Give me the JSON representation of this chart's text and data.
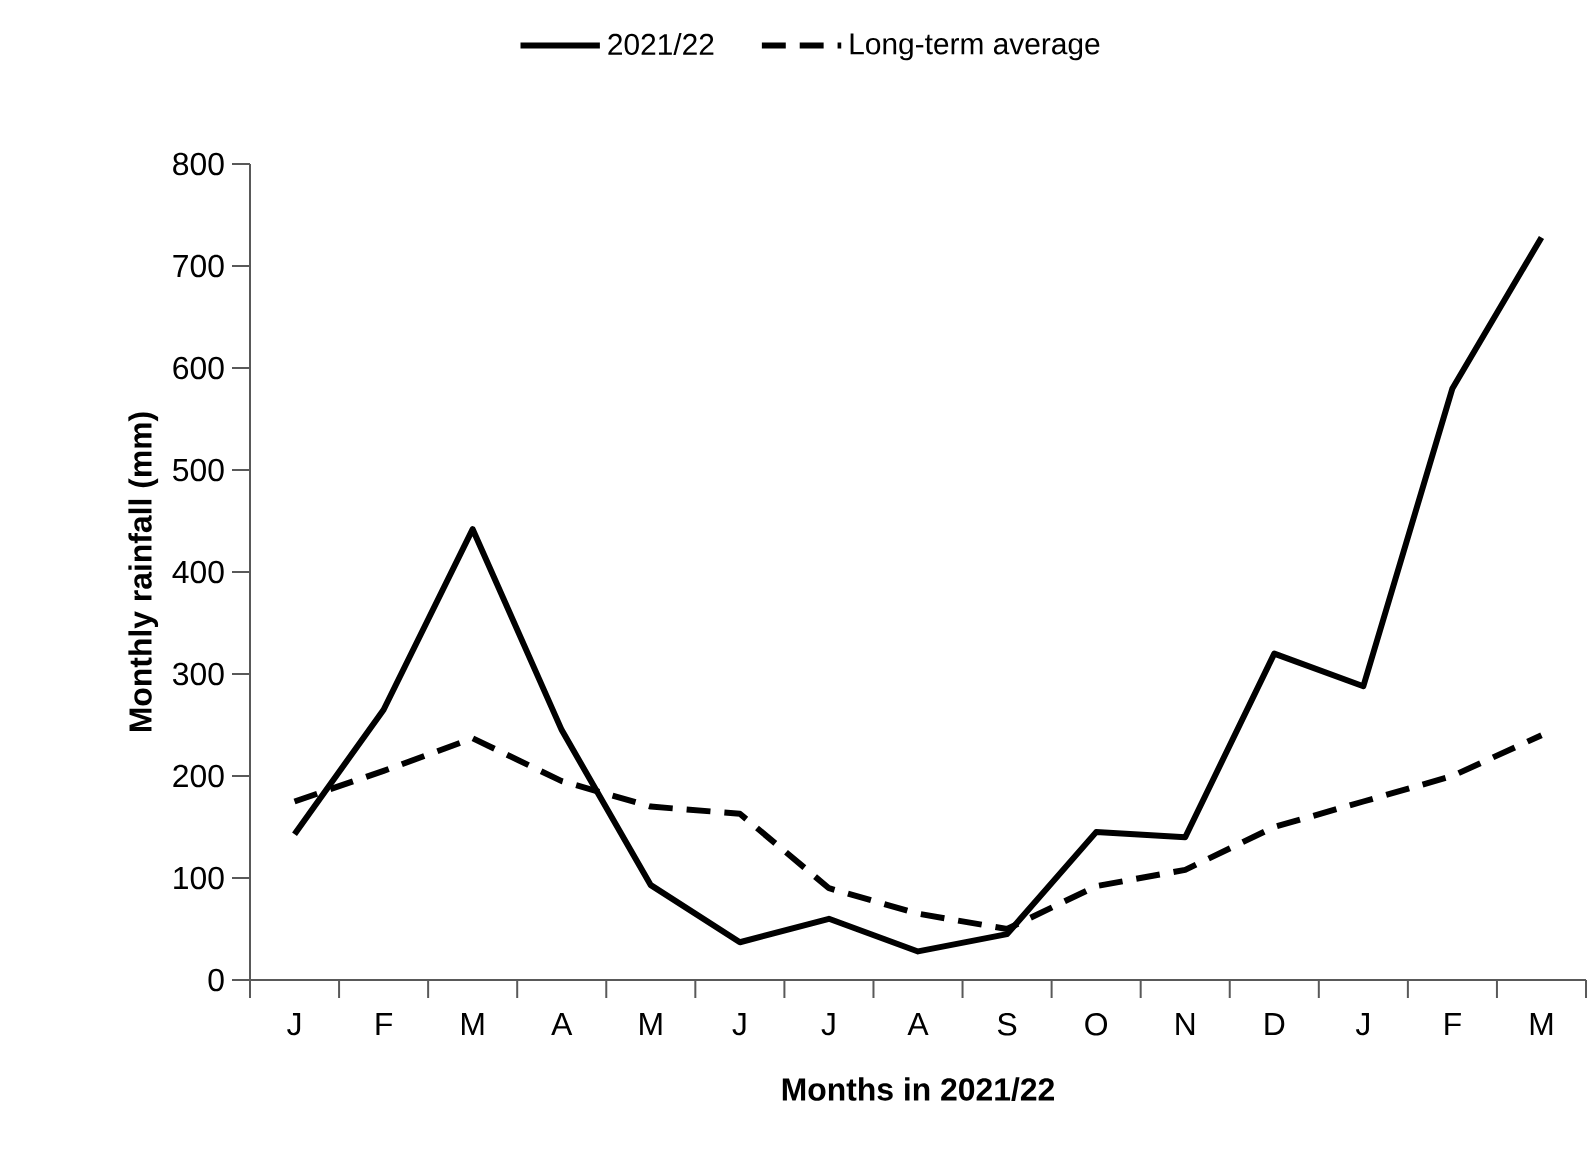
{
  "chart_data": {
    "type": "line",
    "xlabel": "Months in 2021/22",
    "ylabel": "Monthly rainfall (mm)",
    "categories": [
      "J",
      "F",
      "M",
      "A",
      "M",
      "J",
      "J",
      "A",
      "S",
      "O",
      "N",
      "D",
      "J",
      "F",
      "M"
    ],
    "series": [
      {
        "name": "2021/22",
        "color": "#000000",
        "line_style": "solid",
        "values": [
          143,
          265,
          442,
          245,
          93,
          37,
          60,
          28,
          45,
          145,
          140,
          320,
          288,
          580,
          728
        ]
      },
      {
        "name": "Long-term average",
        "color": "#000000",
        "line_style": "dashed",
        "values": [
          175,
          205,
          237,
          195,
          170,
          163,
          90,
          65,
          50,
          92,
          108,
          150,
          175,
          200,
          240
        ]
      }
    ],
    "ylim": [
      0,
      800
    ],
    "yticks": [
      0,
      100,
      200,
      300,
      400,
      500,
      600,
      700,
      800
    ],
    "grid": false,
    "legend": "top",
    "marker": "none"
  }
}
